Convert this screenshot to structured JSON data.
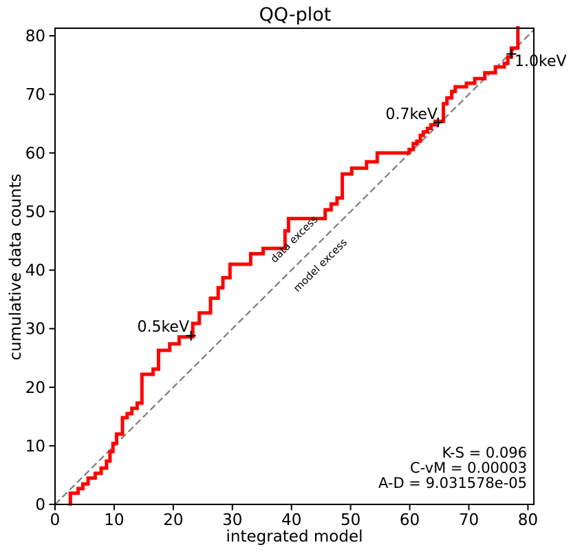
{
  "chart_data": {
    "type": "line",
    "title": "QQ-plot",
    "xlabel": "integrated model",
    "ylabel": "cumulative data counts",
    "xlim": [
      0,
      81
    ],
    "ylim": [
      0,
      81.3
    ],
    "xticks": [
      0,
      10,
      20,
      30,
      40,
      50,
      60,
      70,
      80
    ],
    "yticks": [
      0,
      10,
      20,
      30,
      40,
      50,
      60,
      70,
      80
    ],
    "grid": false,
    "legend_position": "none",
    "series": [
      {
        "name": "cumulative-data-vs-model-step",
        "type": "step",
        "color": "#ff0000",
        "linewidth": 5,
        "points": [
          [
            2.6,
            0
          ],
          [
            2.6,
            1.9
          ],
          [
            3.9,
            1.9
          ],
          [
            3.9,
            2.7
          ],
          [
            4.7,
            2.7
          ],
          [
            4.7,
            3.5
          ],
          [
            5.6,
            3.5
          ],
          [
            5.6,
            4.5
          ],
          [
            6.8,
            4.5
          ],
          [
            6.8,
            5.3
          ],
          [
            7.8,
            5.3
          ],
          [
            7.8,
            6.2
          ],
          [
            8.7,
            6.2
          ],
          [
            8.7,
            7.4
          ],
          [
            9.3,
            7.4
          ],
          [
            9.3,
            9
          ],
          [
            9.8,
            9
          ],
          [
            9.8,
            10.4
          ],
          [
            10.4,
            10.4
          ],
          [
            10.4,
            12
          ],
          [
            11.4,
            12
          ],
          [
            11.4,
            14.8
          ],
          [
            12.2,
            14.8
          ],
          [
            12.2,
            15.5
          ],
          [
            13,
            15.5
          ],
          [
            13,
            16.4
          ],
          [
            13.9,
            16.4
          ],
          [
            13.9,
            17.3
          ],
          [
            14.7,
            17.3
          ],
          [
            14.7,
            22.2
          ],
          [
            16.6,
            22.2
          ],
          [
            16.6,
            23.1
          ],
          [
            17.5,
            23.1
          ],
          [
            17.5,
            26.3
          ],
          [
            19.4,
            26.3
          ],
          [
            19.4,
            27.4
          ],
          [
            21,
            27.4
          ],
          [
            21,
            28.6
          ],
          [
            23.3,
            28.6
          ],
          [
            23.3,
            30.9
          ],
          [
            24.4,
            30.9
          ],
          [
            24.4,
            32.7
          ],
          [
            26.3,
            32.7
          ],
          [
            26.3,
            35.2
          ],
          [
            27.6,
            35.2
          ],
          [
            27.6,
            37
          ],
          [
            28.4,
            37
          ],
          [
            28.4,
            38.7
          ],
          [
            29.6,
            38.7
          ],
          [
            29.6,
            41
          ],
          [
            33.1,
            41
          ],
          [
            33.1,
            42.8
          ],
          [
            35.2,
            42.8
          ],
          [
            35.2,
            43.7
          ],
          [
            38.9,
            43.7
          ],
          [
            38.9,
            46.7
          ],
          [
            39.5,
            46.7
          ],
          [
            39.5,
            48.8
          ],
          [
            45.7,
            48.8
          ],
          [
            45.7,
            50.3
          ],
          [
            46.7,
            50.3
          ],
          [
            46.7,
            51.3
          ],
          [
            47.7,
            51.3
          ],
          [
            47.7,
            52.3
          ],
          [
            48.6,
            52.3
          ],
          [
            48.6,
            56.4
          ],
          [
            50.2,
            56.4
          ],
          [
            50.2,
            57.4
          ],
          [
            52.7,
            57.4
          ],
          [
            52.7,
            58.5
          ],
          [
            54.5,
            58.5
          ],
          [
            54.5,
            60
          ],
          [
            59.9,
            60
          ],
          [
            59.9,
            60.6
          ],
          [
            60.6,
            60.6
          ],
          [
            60.6,
            61.6
          ],
          [
            61.2,
            61.6
          ],
          [
            61.2,
            62
          ],
          [
            61.8,
            62
          ],
          [
            61.8,
            63
          ],
          [
            62.3,
            63
          ],
          [
            62.3,
            63.6
          ],
          [
            63,
            63.6
          ],
          [
            63,
            64.2
          ],
          [
            63.6,
            64.2
          ],
          [
            63.6,
            64.8
          ],
          [
            64.3,
            64.8
          ],
          [
            64.3,
            65.4
          ],
          [
            65.7,
            65.4
          ],
          [
            65.7,
            68.4
          ],
          [
            66.3,
            68.4
          ],
          [
            66.3,
            69.4
          ],
          [
            67.1,
            69.4
          ],
          [
            67.1,
            70.5
          ],
          [
            67.7,
            70.5
          ],
          [
            67.7,
            71.3
          ],
          [
            69.6,
            71.3
          ],
          [
            69.6,
            71.9
          ],
          [
            71,
            71.9
          ],
          [
            71,
            72.7
          ],
          [
            72.7,
            72.7
          ],
          [
            72.7,
            73.7
          ],
          [
            74.5,
            73.7
          ],
          [
            74.5,
            74.7
          ],
          [
            76,
            74.7
          ],
          [
            76,
            75.3
          ],
          [
            76.6,
            75.3
          ],
          [
            76.6,
            76.4
          ],
          [
            77.2,
            76.4
          ],
          [
            77.2,
            77.9
          ],
          [
            78.3,
            77.9
          ],
          [
            78.3,
            82
          ]
        ]
      },
      {
        "name": "identity-reference-line",
        "type": "line",
        "style": "dashed",
        "color": "#808080",
        "linewidth": 2.3,
        "points": [
          [
            0,
            0
          ],
          [
            82,
            82
          ]
        ]
      }
    ],
    "annotations": [
      {
        "label": "0.5keV",
        "x": 23.0,
        "y": 28.8,
        "marker": "+",
        "label_side": "left"
      },
      {
        "label": "0.7keV",
        "x": 64.8,
        "y": 65.2,
        "marker": "+",
        "label_side": "left"
      },
      {
        "label": "1.0keV",
        "x": 77.2,
        "y": 76.9,
        "marker": "+",
        "label_side": "right"
      }
    ],
    "region_labels": [
      {
        "text": "data excess",
        "x": 40.8,
        "y": 44.9,
        "rotation": -45,
        "color": "#a6a6a6"
      },
      {
        "text": "model excess",
        "x": 45.2,
        "y": 40.4,
        "rotation": -45,
        "color": "#a6a6a6"
      }
    ],
    "stats": {
      "color": "#8c8c8c",
      "lines": [
        "K-S = 0.096",
        "C-vM = 0.00003",
        "A-D = 9.031578e-05"
      ]
    }
  }
}
